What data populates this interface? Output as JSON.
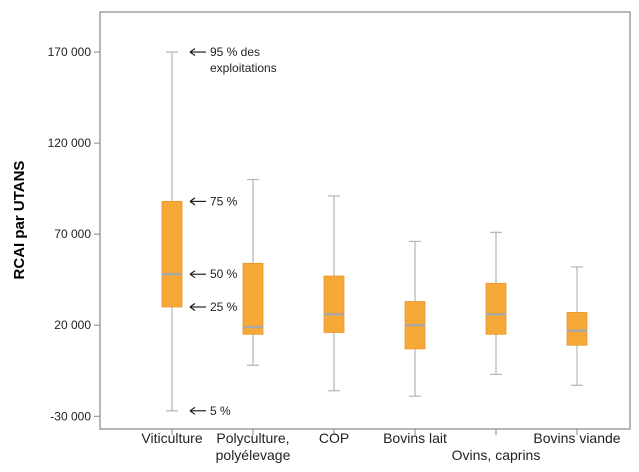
{
  "chart_data": {
    "type": "boxplot",
    "ylabel": "RCAI par UTANS",
    "xlabel": "",
    "ylim": [
      -37000,
      192000
    ],
    "yticks": [
      -30000,
      20000,
      70000,
      120000,
      170000
    ],
    "ytick_labels": [
      "-30 000",
      "20 000",
      "70 000",
      "120 000",
      "170 000"
    ],
    "grid": false,
    "colors": {
      "box": "#F7A937",
      "median": "#A8A8A8",
      "whisker": "#B5B5B5",
      "frame": "#888888"
    },
    "categories": [
      {
        "label": [
          "Viticulture"
        ],
        "label_row": 1
      },
      {
        "label": [
          "Polyculture,",
          "polyélevage"
        ],
        "label_row": 1
      },
      {
        "label": [
          "COP"
        ],
        "label_row": 1
      },
      {
        "label": [
          "Bovins lait"
        ],
        "label_row": 1
      },
      {
        "label": [
          "Ovins, caprins"
        ],
        "label_row": 2
      },
      {
        "label": [
          "Bovins viande"
        ],
        "label_row": 1
      }
    ],
    "series": [
      {
        "p5": -27000,
        "p25": 30000,
        "p50": 48000,
        "p75": 88000,
        "p95": 170000
      },
      {
        "p5": -2000,
        "p25": 15000,
        "p50": 19000,
        "p75": 54000,
        "p95": 100000
      },
      {
        "p5": -16000,
        "p25": 16000,
        "p50": 26000,
        "p75": 47000,
        "p95": 91000
      },
      {
        "p5": -19000,
        "p25": 7000,
        "p50": 20000,
        "p75": 33000,
        "p95": 66000
      },
      {
        "p5": -7000,
        "p25": 15000,
        "p50": 26000,
        "p75": 43000,
        "p95": 71000
      },
      {
        "p5": -13000,
        "p25": 9000,
        "p50": 17000,
        "p75": 27000,
        "p95": 52000
      }
    ],
    "annotations": [
      {
        "lines": [
          "95 % des",
          "exploitations"
        ],
        "category": 0,
        "stat": "p95"
      },
      {
        "lines": [
          "75 %"
        ],
        "category": 0,
        "stat": "p75"
      },
      {
        "lines": [
          "50 %"
        ],
        "category": 0,
        "stat": "p50"
      },
      {
        "lines": [
          "25 %"
        ],
        "category": 0,
        "stat": "p25"
      },
      {
        "lines": [
          "5 %"
        ],
        "category": 0,
        "stat": "p5"
      }
    ]
  }
}
